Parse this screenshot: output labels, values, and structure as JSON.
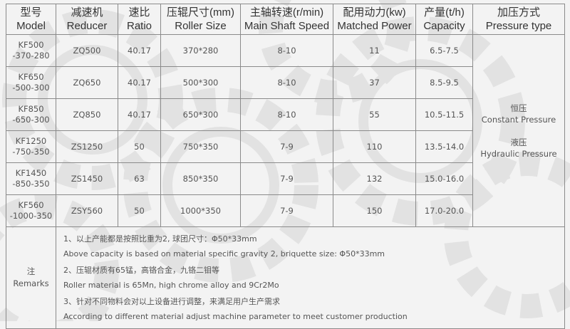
{
  "headers": [
    {
      "cn": "型号",
      "en": "Model"
    },
    {
      "cn": "减速机",
      "en": "Reducer"
    },
    {
      "cn": "速比",
      "en": "Ratio"
    },
    {
      "cn": "压辊尺寸(mm)",
      "en": "Roller Size"
    },
    {
      "cn": "主轴转速(r/min)",
      "en": "Main Shaft Speed"
    },
    {
      "cn": "配用动力(kw)",
      "en": "Matched Power"
    },
    {
      "cn": "产量(t/h)",
      "en": "Capacity"
    },
    {
      "cn": "加压方式",
      "en": "Pressure type"
    }
  ],
  "rows": [
    {
      "model1": "KF500",
      "model2": "-370-280",
      "reducer": "ZQ500",
      "ratio": "40.17",
      "roller": "370*280",
      "speed": "8-10",
      "power": "11",
      "capacity": "6.5-7.5"
    },
    {
      "model1": "KF650",
      "model2": "-500-300",
      "reducer": "ZQ650",
      "ratio": "40.17",
      "roller": "500*300",
      "speed": "8-10",
      "power": "37",
      "capacity": "8.5-9.5"
    },
    {
      "model1": "KF850",
      "model2": "-650-300",
      "reducer": "ZQ850",
      "ratio": "40.17",
      "roller": "650*300",
      "speed": "8-10",
      "power": "55",
      "capacity": "10.5-11.5"
    },
    {
      "model1": "KF1250",
      "model2": "-750-350",
      "reducer": "ZS1250",
      "ratio": "50",
      "roller": "750*350",
      "speed": "7-9",
      "power": "110",
      "capacity": "13.5-14.0"
    },
    {
      "model1": "KF1450",
      "model2": "-850-350",
      "reducer": "ZS1450",
      "ratio": "63",
      "roller": "850*350",
      "speed": "7-9",
      "power": "132",
      "capacity": "15.0-16.0"
    },
    {
      "model1": "KF560",
      "model2": "-1000-350",
      "reducer": "ZSY560",
      "ratio": "50",
      "roller": "1000*350",
      "speed": "7-9",
      "power": "150",
      "capacity": "17.0-20.0"
    }
  ],
  "pressure": {
    "cn1": "恒压",
    "en1": "Constant Pressure",
    "cn2": "液压",
    "en2": "Hydraulic Pressure"
  },
  "remarks": {
    "label_cn": "注",
    "label_en": "Remarks",
    "lines": [
      "1、以上产能都是按照比重为2, 球团尺寸：Φ50*33mm",
      "Above capacity is based on material specific gravity 2, briquette size: Φ50*33mm",
      "2、压辊材质有65锰，高铬合金，九铬二钼等",
      "Roller material is 65Mn, high chrome alloy and 9Cr2Mo",
      "3、针对不同物料会对以上设备进行调整，来满足用户生产需求",
      "According to different material adjust machine parameter to meet customer production"
    ]
  }
}
